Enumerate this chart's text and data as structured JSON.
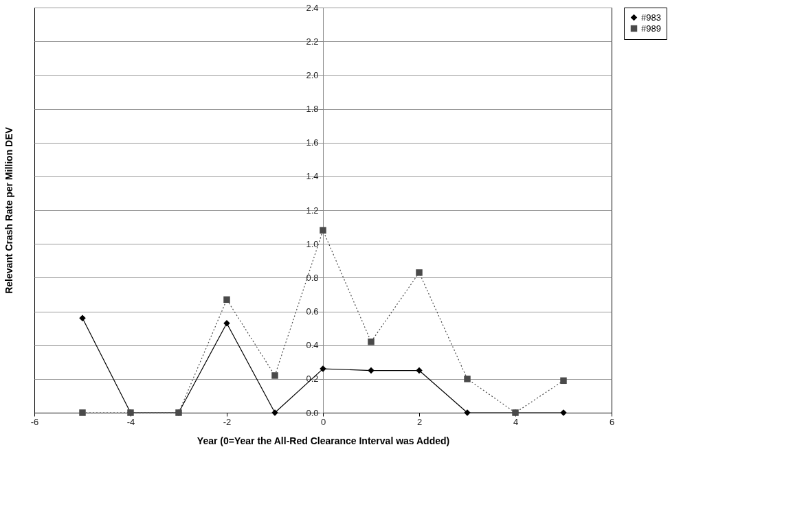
{
  "chart_data": {
    "type": "line",
    "xlabel": "Year (0=Year the All-Red Clearance Interval was Added)",
    "ylabel": "Relevant Crash Rate per Million DEV",
    "x": [
      -5,
      -4,
      -3,
      -2,
      -1,
      0,
      1,
      2,
      3,
      4,
      5
    ],
    "series": [
      {
        "name": "#983",
        "color": "#000000",
        "marker": "diamond",
        "line_style": "solid",
        "values": [
          0.56,
          0,
          0,
          0.53,
          0,
          0.26,
          0.25,
          0.25,
          0,
          0,
          0
        ]
      },
      {
        "name": "#989",
        "color": "#4a4a4a",
        "marker": "square",
        "line_style": "dotted",
        "values": [
          0,
          0,
          0,
          0.67,
          0.22,
          1.08,
          0.42,
          0.83,
          0.2,
          0,
          0.19
        ]
      }
    ],
    "xlim": [
      -6,
      6
    ],
    "xticks": [
      -6,
      -4,
      -2,
      0,
      2,
      4,
      6
    ],
    "ylim": [
      0,
      2.4
    ],
    "yticks": [
      {
        "value": 0,
        "label": "0.0"
      },
      {
        "value": 0.2,
        "label": "0.2"
      },
      {
        "value": 0.4,
        "label": "0.4"
      },
      {
        "value": 0.6,
        "label": "0.6"
      },
      {
        "value": 0.8,
        "label": "0.8"
      },
      {
        "value": 1.0,
        "label": "1.0"
      },
      {
        "value": 1.2,
        "label": "1.2"
      },
      {
        "value": 1.4,
        "label": "1.4"
      },
      {
        "value": 1.6,
        "label": "1.6"
      },
      {
        "value": 1.8,
        "label": "1.8"
      },
      {
        "value": 2.0,
        "label": "2.0"
      },
      {
        "value": 2.2,
        "label": "2.2"
      },
      {
        "value": 2.4,
        "label": "2.4"
      }
    ],
    "grid": "y",
    "legend": "right"
  }
}
